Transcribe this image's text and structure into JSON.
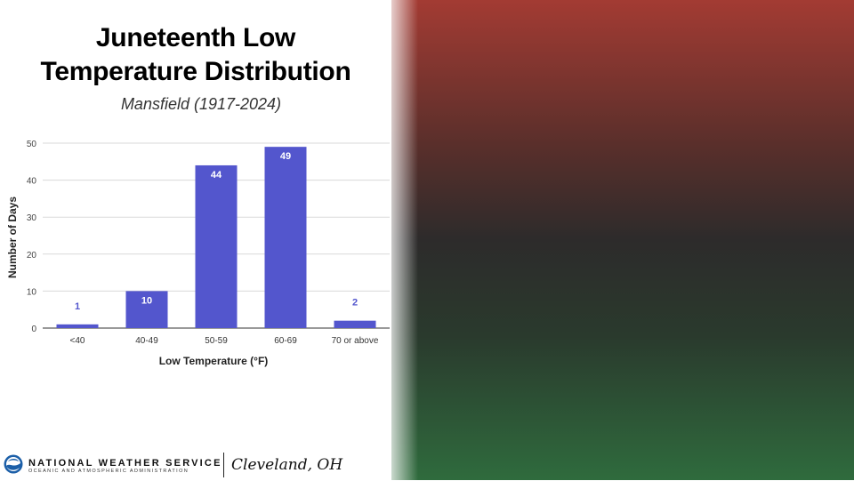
{
  "title_line1": "Juneteenth Low",
  "title_line2": "Temperature Distribution",
  "subtitle": "Mansfield (1917-2024)",
  "chart_data": {
    "type": "bar",
    "categories": [
      "<40",
      "40-49",
      "50-59",
      "60-69",
      "70 or above"
    ],
    "values": [
      1,
      10,
      44,
      49,
      2
    ],
    "data_labels": [
      "1",
      "10",
      "44",
      "49",
      "2"
    ],
    "xlabel": "Low Temperature (°F)",
    "ylabel": "Number of Days",
    "ylim": [
      0,
      50
    ],
    "yticks": [
      0,
      10,
      20,
      30,
      40,
      50
    ],
    "grid": true,
    "bar_color": "#5356cd"
  },
  "footer": {
    "agency_name": "NATIONAL WEATHER SERVICE",
    "agency_sub": "OCEANIC AND ATMOSPHERIC ADMINISTRATION",
    "office": "Cleveland, OH",
    "logo_icon": "noaa-logo"
  },
  "background": {
    "colors": [
      "#a33b33",
      "#2d2b2b",
      "#2f6b3d"
    ]
  }
}
